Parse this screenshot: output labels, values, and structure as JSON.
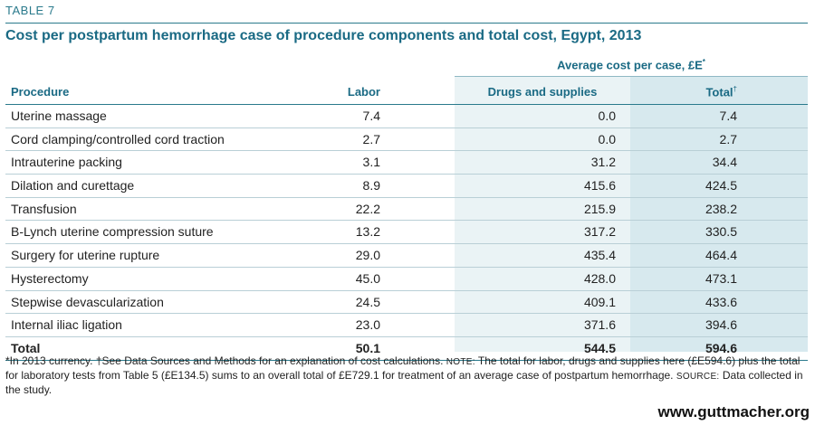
{
  "table_label": "TABLE 7",
  "title": "Cost per postpartum hemorrhage case of procedure components and total cost, Egypt, 2013",
  "subheader": "Average cost per case, £E",
  "subheader_mark": "*",
  "columns": {
    "procedure": "Procedure",
    "labor": "Labor",
    "drugs": "Drugs and supplies",
    "total": "Total",
    "total_mark": "†"
  },
  "rows": [
    {
      "procedure": "Uterine massage",
      "labor": "7.4",
      "drugs": "0.0",
      "total": "7.4"
    },
    {
      "procedure": "Cord clamping/controlled cord traction",
      "labor": "2.7",
      "drugs": "0.0",
      "total": "2.7"
    },
    {
      "procedure": "Intrauterine packing",
      "labor": "3.1",
      "drugs": "31.2",
      "total": "34.4"
    },
    {
      "procedure": "Dilation and curettage",
      "labor": "8.9",
      "drugs": "415.6",
      "total": "424.5"
    },
    {
      "procedure": "Transfusion",
      "labor": "22.2",
      "drugs": "215.9",
      "total": "238.2"
    },
    {
      "procedure": "B-Lynch uterine compression suture",
      "labor": "13.2",
      "drugs": "317.2",
      "total": "330.5"
    },
    {
      "procedure": "Surgery for uterine rupture",
      "labor": "29.0",
      "drugs": "435.4",
      "total": "464.4"
    },
    {
      "procedure": "Hysterectomy",
      "labor": "45.0",
      "drugs": "428.0",
      "total": "473.1"
    },
    {
      "procedure": "Stepwise devascularization",
      "labor": "24.5",
      "drugs": "409.1",
      "total": "433.6"
    },
    {
      "procedure": "Internal iliac ligation",
      "labor": "23.0",
      "drugs": "371.6",
      "total": "394.6"
    }
  ],
  "total_row": {
    "procedure": "Total",
    "labor": "50.1",
    "drugs": "544.5",
    "total": "594.6"
  },
  "footnotes": {
    "part1": "*In 2013 currency. †See Data Sources and Methods for an explanation of cost calculations. ",
    "note_label": "NOTE:",
    "part2": " The total for labor, drugs and supplies here (£E594.6) plus the total for laboratory tests from Table 5 (£E134.5) sums to an overall total of £E729.1 for treatment of an average case of postpartum hemorrhage. ",
    "source_label": "SOURCE:",
    "part3": " Data collected in the study."
  },
  "url": "www.guttmacher.org",
  "colors": {
    "accent": "#1a6a84",
    "shade_light": "#eaf3f5",
    "shade_dark": "#d7e9ee"
  }
}
